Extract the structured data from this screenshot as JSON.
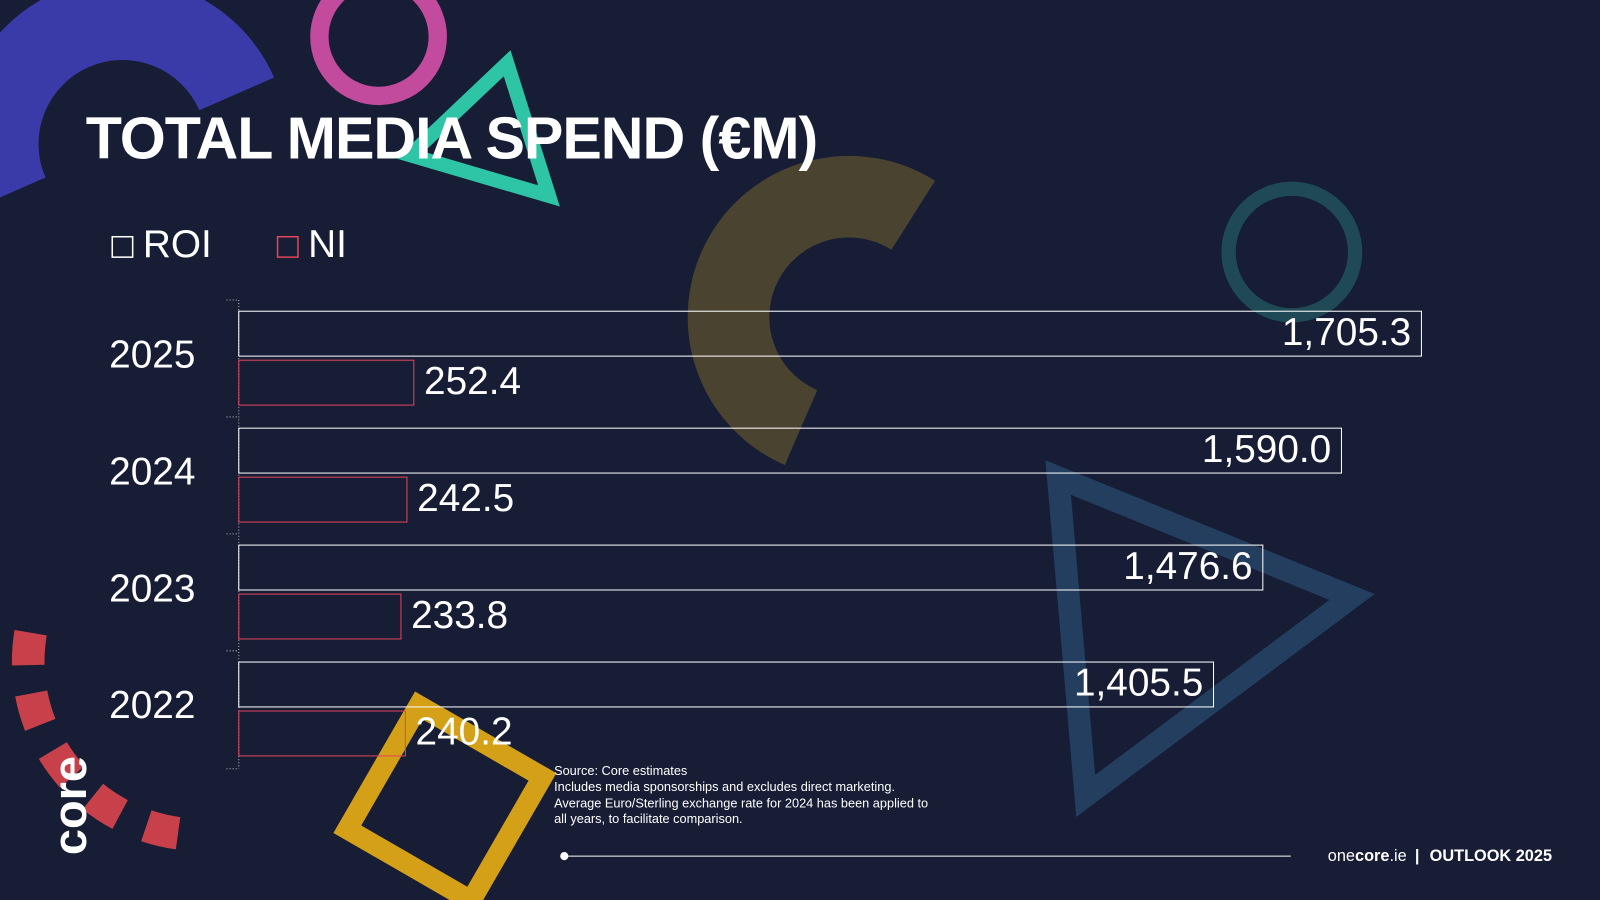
{
  "chart_data": {
    "type": "hbar",
    "title": "TOTAL MEDIA SPEND (€M)",
    "categories": [
      "2025",
      "2024",
      "2023",
      "2022"
    ],
    "series": [
      {
        "name": "ROI",
        "color": "#ffffff",
        "values": [
          1705.3,
          1590.0,
          1476.6,
          1405.5
        ],
        "value_labels": [
          "1,705.3",
          "1,590.0",
          "1,476.6",
          "1,405.5"
        ]
      },
      {
        "name": "NI",
        "color": "#e0455a",
        "values": [
          252.4,
          242.5,
          233.8,
          240.2
        ]
      }
    ]
  },
  "notes": [
    "Source: Core estimates",
    "Includes media sponsorships and excludes direct marketing.",
    "Average Euro/Sterling exchange rate for 2024 has been applied to",
    "all years, to facilitate comparison."
  ],
  "footer": {
    "site_prefix": "one",
    "site_bold": "core",
    "site_suffix": ".ie",
    "separator": "|",
    "edition": "OUTLOOK 2025"
  },
  "logo": "core"
}
